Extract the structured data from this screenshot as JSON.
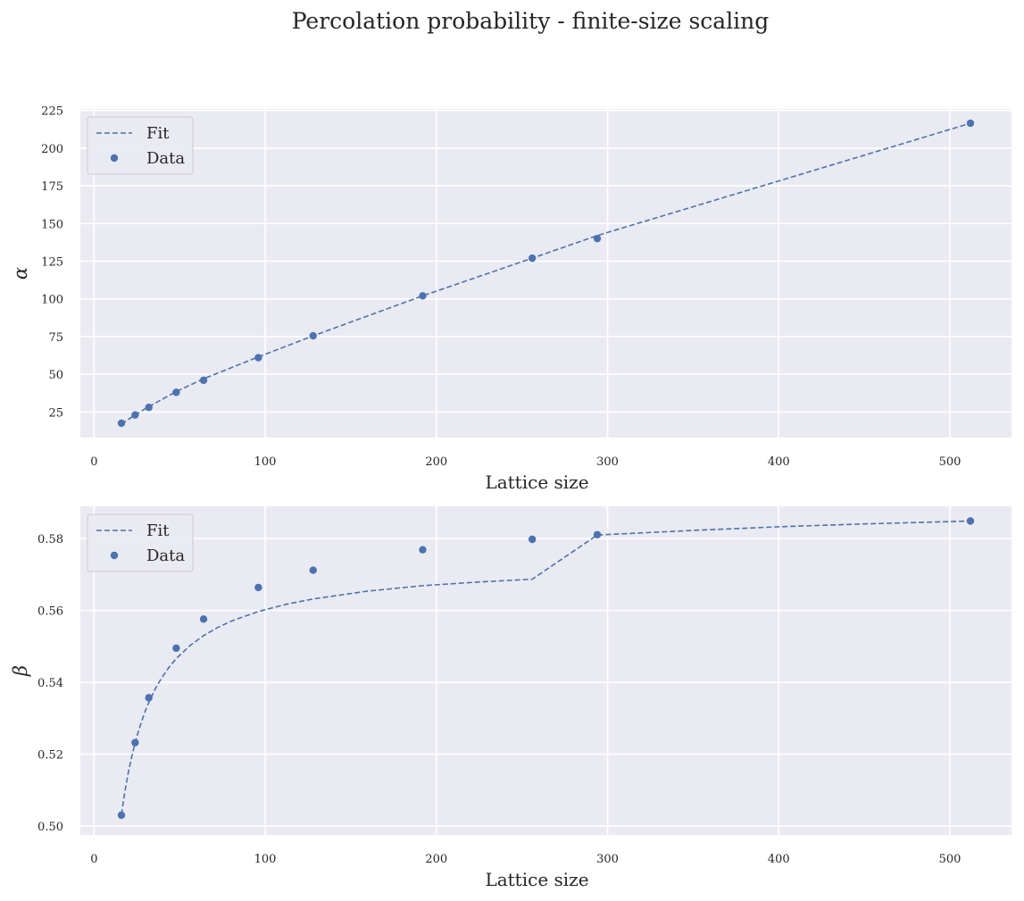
{
  "title": "Percolation probability - finite-size scaling",
  "colors": {
    "background": "#ffffff",
    "axes_face": "#eaeaf2",
    "grid": "#ffffff",
    "series": "#4c72b0",
    "text": "#262626",
    "legend_face": "#eaeaf2",
    "legend_edge": "#cccccc"
  },
  "chart_data": [
    {
      "type": "scatter",
      "xlabel": "Lattice size",
      "ylabel": "α",
      "xlim": [
        -8,
        536
      ],
      "ylim": [
        8,
        226
      ],
      "xticks": [
        0,
        100,
        200,
        300,
        400,
        500
      ],
      "yticks": [
        25,
        50,
        75,
        100,
        125,
        150,
        175,
        200,
        225
      ],
      "ytick_decimals": 0,
      "grid": true,
      "legend": {
        "position": "top-left",
        "entries": [
          "Fit",
          "Data"
        ]
      },
      "series": [
        {
          "name": "Fit",
          "style": "dashed-line",
          "x": [
            16,
            24,
            32,
            48,
            64,
            96,
            128,
            192,
            256,
            294,
            512
          ],
          "y": [
            17.0,
            23.0,
            28.5,
            38.5,
            47.0,
            61.5,
            75.5,
            102.0,
            127.0,
            142.0,
            216.5
          ]
        },
        {
          "name": "Data",
          "style": "markers",
          "x": [
            16,
            24,
            32,
            48,
            64,
            96,
            128,
            192,
            256,
            294,
            512
          ],
          "y": [
            17.5,
            23.0,
            28.0,
            38.0,
            46.0,
            61.0,
            75.5,
            102.0,
            127.0,
            140.0,
            216.5
          ]
        }
      ]
    },
    {
      "type": "scatter",
      "xlabel": "Lattice size",
      "ylabel": "β",
      "xlim": [
        -8,
        536
      ],
      "ylim": [
        0.4975,
        0.589
      ],
      "xticks": [
        0,
        100,
        200,
        300,
        400,
        500
      ],
      "yticks": [
        0.5,
        0.52,
        0.54,
        0.56,
        0.58
      ],
      "ytick_decimals": 2,
      "grid": true,
      "legend": {
        "position": "top-left",
        "entries": [
          "Fit",
          "Data"
        ]
      },
      "series": [
        {
          "name": "Fit",
          "style": "dashed-line",
          "x": [
            16,
            18,
            20,
            22,
            24,
            26,
            28,
            30,
            32,
            36,
            40,
            44,
            48,
            56,
            64,
            72,
            80,
            96,
            112,
            128,
            160,
            192,
            224,
            256,
            294,
            350,
            400,
            450,
            512
          ],
          "y": [
            0.5032,
            0.5095,
            0.5148,
            0.5193,
            0.5231,
            0.5265,
            0.5294,
            0.5321,
            0.5344,
            0.5384,
            0.5416,
            0.5443,
            0.5466,
            0.5502,
            0.553,
            0.5552,
            0.557,
            0.5597,
            0.5617,
            0.5632,
            0.5654,
            0.5669,
            0.5679,
            0.5687,
            0.581,
            0.5823,
            0.5833,
            0.5841,
            0.5849
          ]
        },
        {
          "name": "Data",
          "style": "markers",
          "x": [
            16,
            24,
            32,
            48,
            64,
            96,
            128,
            192,
            256,
            294,
            512
          ],
          "y": [
            0.503,
            0.5232,
            0.5357,
            0.5495,
            0.5576,
            0.5664,
            0.5712,
            0.5769,
            0.5798,
            0.5811,
            0.5849
          ]
        }
      ]
    }
  ]
}
